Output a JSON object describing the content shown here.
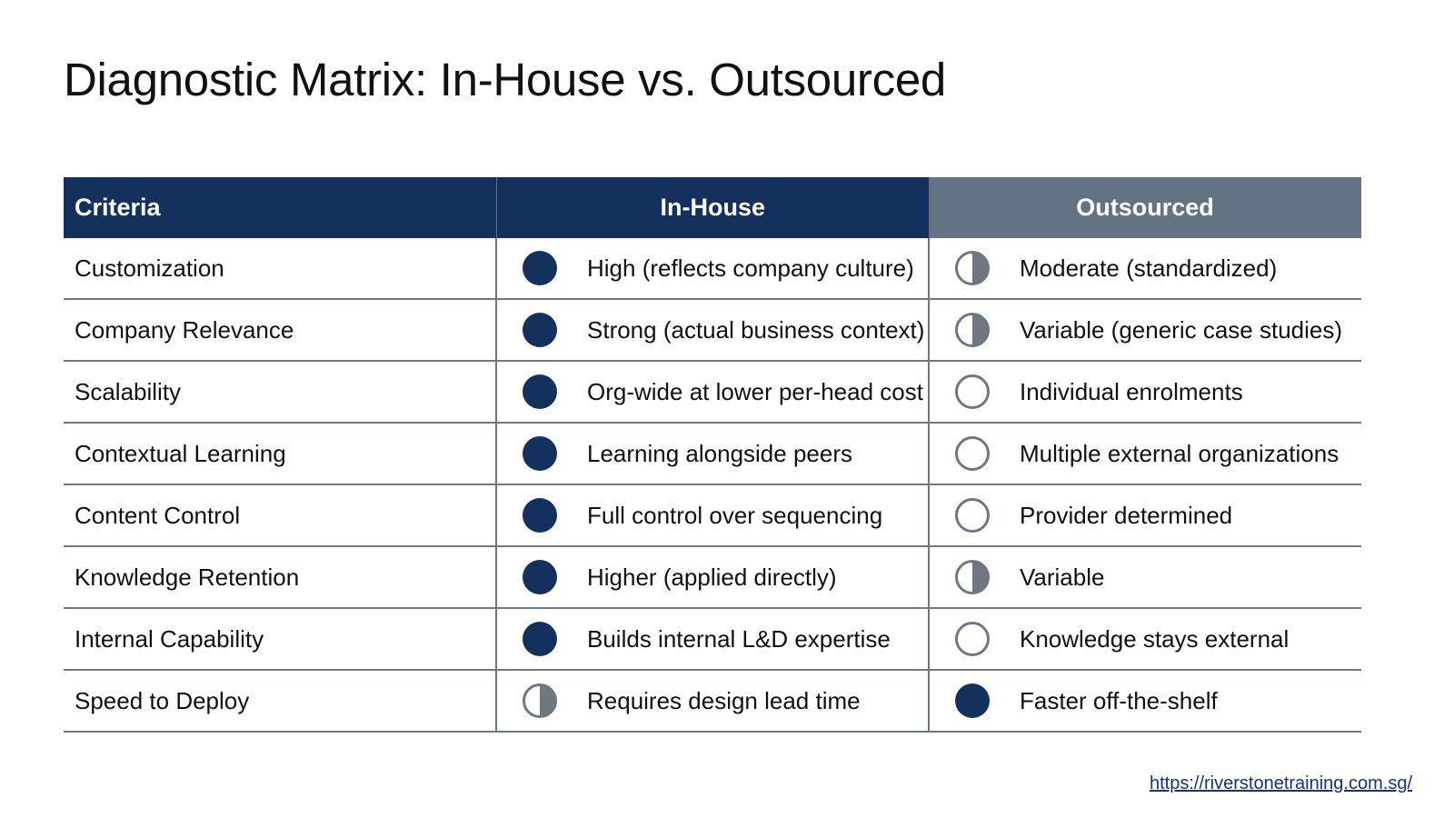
{
  "title": "Diagnostic Matrix: In-House vs. Outsourced",
  "table": {
    "headers": {
      "criteria": "Criteria",
      "in_house": "In-House",
      "outsourced": "Outsourced"
    },
    "rows": [
      {
        "criteria": "Customization",
        "in_house": {
          "level": "full",
          "text": "High (reflects company culture)"
        },
        "outsourced": {
          "level": "half",
          "text": "Moderate (standardized)"
        }
      },
      {
        "criteria": "Company Relevance",
        "in_house": {
          "level": "full",
          "text": "Strong (actual business context)"
        },
        "outsourced": {
          "level": "half",
          "text": "Variable (generic case studies)"
        }
      },
      {
        "criteria": "Scalability",
        "in_house": {
          "level": "full",
          "text": "Org-wide at lower per-head cost"
        },
        "outsourced": {
          "level": "empty",
          "text": "Individual enrolments"
        }
      },
      {
        "criteria": "Contextual Learning",
        "in_house": {
          "level": "full",
          "text": "Learning alongside peers"
        },
        "outsourced": {
          "level": "empty",
          "text": "Multiple external organizations"
        }
      },
      {
        "criteria": "Content Control",
        "in_house": {
          "level": "full",
          "text": "Full control over sequencing"
        },
        "outsourced": {
          "level": "empty",
          "text": "Provider determined"
        }
      },
      {
        "criteria": "Knowledge Retention",
        "in_house": {
          "level": "full",
          "text": "Higher (applied directly)"
        },
        "outsourced": {
          "level": "half",
          "text": "Variable"
        }
      },
      {
        "criteria": "Internal Capability",
        "in_house": {
          "level": "full",
          "text": "Builds internal L&D expertise"
        },
        "outsourced": {
          "level": "empty",
          "text": "Knowledge stays external"
        }
      },
      {
        "criteria": "Speed to Deploy",
        "in_house": {
          "level": "half",
          "text": "Requires design lead time"
        },
        "outsourced": {
          "level": "full",
          "text": "Faster off-the-shelf"
        }
      }
    ]
  },
  "footer": {
    "link_text": "https://riverstonetraining.com.sg/"
  },
  "colors": {
    "header_navy": "#13315c",
    "header_gray": "#647383",
    "indicator_full": "#13315c",
    "indicator_gray": "#6f7780",
    "link": "#1a2d8c"
  },
  "icons": {
    "full": "filled-circle-icon",
    "half": "half-filled-circle-icon",
    "empty": "empty-circle-icon"
  }
}
